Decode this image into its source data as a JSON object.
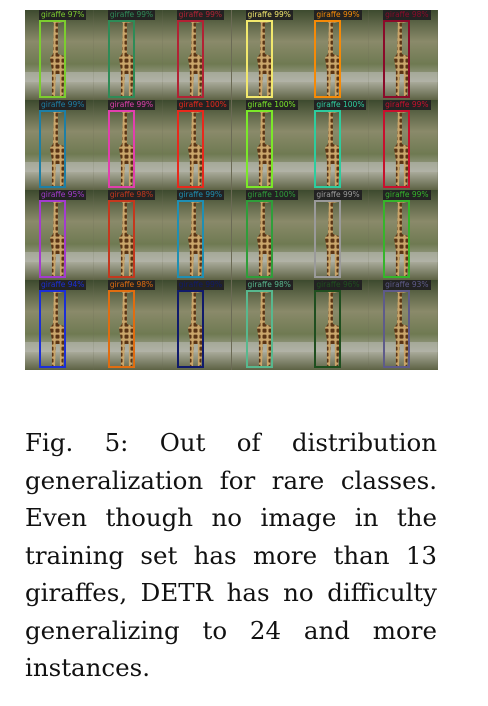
{
  "figure": {
    "rows": 4,
    "cols": 6,
    "detections": [
      {
        "label": "giraffe 97%",
        "color": "#7ccd2f"
      },
      {
        "label": "giraffe 99%",
        "color": "#2e8b57"
      },
      {
        "label": "giraffe 99%",
        "color": "#b22234"
      },
      {
        "label": "giraffe 99%",
        "color": "#f2e86d"
      },
      {
        "label": "giraffe 99%",
        "color": "#f58a07"
      },
      {
        "label": "giraffe 98%",
        "color": "#8b0a2a"
      },
      {
        "label": "giraffe 99%",
        "color": "#1e7fa5"
      },
      {
        "label": "giraffe 99%",
        "color": "#e23fae"
      },
      {
        "label": "giraffe 100%",
        "color": "#e8291c"
      },
      {
        "label": "giraffe 100%",
        "color": "#7be829"
      },
      {
        "label": "giraffe 100%",
        "color": "#2ecc9e"
      },
      {
        "label": "giraffe 99%",
        "color": "#c8102e"
      },
      {
        "label": "giraffe 95%",
        "color": "#a33ccf"
      },
      {
        "label": "giraffe 98%",
        "color": "#c4381e"
      },
      {
        "label": "giraffe 99%",
        "color": "#1f8fb3"
      },
      {
        "label": "giraffe 100%",
        "color": "#2f9e3a"
      },
      {
        "label": "giraffe 99%",
        "color": "#9a9a9a"
      },
      {
        "label": "giraffe 99%",
        "color": "#35b52b"
      },
      {
        "label": "giraffe 94%",
        "color": "#1c2fd6"
      },
      {
        "label": "giraffe 98%",
        "color": "#e06d10"
      },
      {
        "label": "giraffe 99%",
        "color": "#101a6b"
      },
      {
        "label": "giraffe 98%",
        "color": "#58b88e"
      },
      {
        "label": "giraffe 96%",
        "color": "#1f4f1f"
      },
      {
        "label": "giraffe 93%",
        "color": "#5e5b8a"
      }
    ]
  },
  "caption": {
    "text": "Fig. 5: Out of distribution generalization for rare classes. Even though no image in the training set has more than 13 giraffes, DETR has no difficulty generalizing to 24 and more instances."
  }
}
